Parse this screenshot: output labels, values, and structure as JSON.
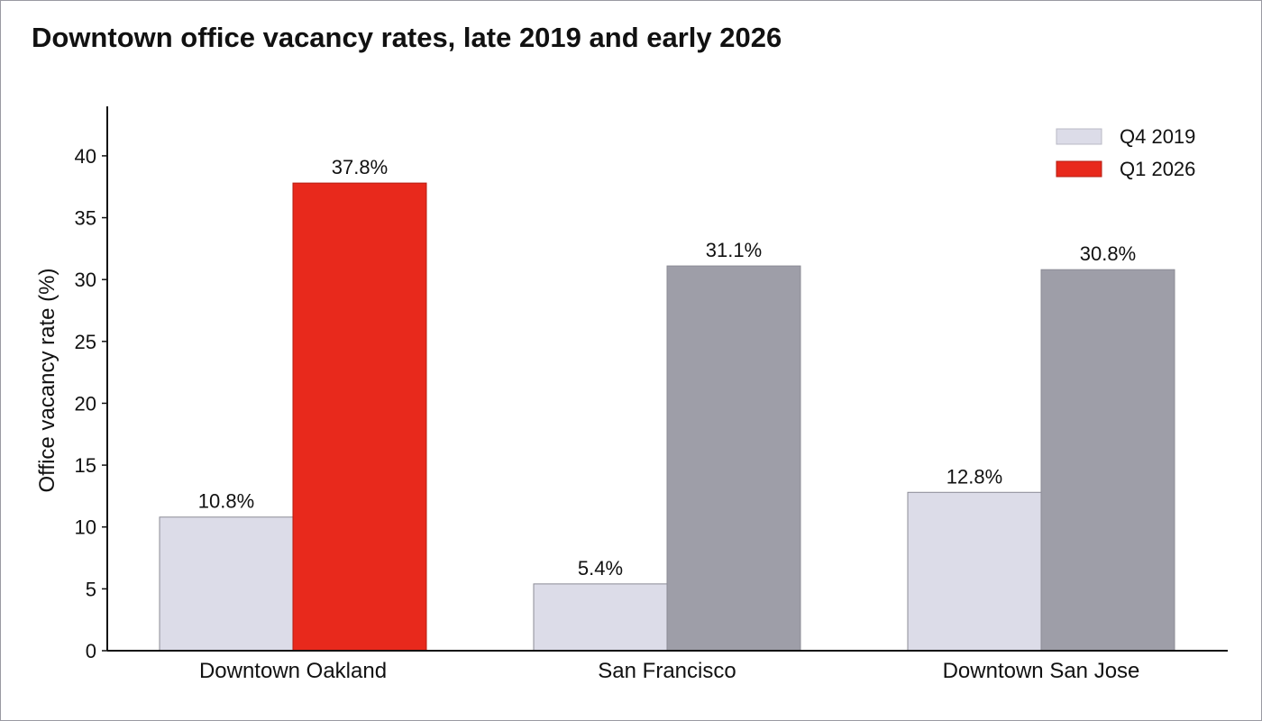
{
  "chart_data": {
    "type": "bar",
    "title": "Downtown office vacancy rates, late 2019 and early 2026",
    "xlabel": "",
    "ylabel": "Office vacancy rate (%)",
    "ylim": [
      0,
      44
    ],
    "yticks": [
      0,
      5,
      10,
      15,
      20,
      25,
      30,
      35,
      40
    ],
    "categories": [
      "Downtown Oakland",
      "San Francisco",
      "Downtown San Jose"
    ],
    "series": [
      {
        "name": "Q4 2019",
        "values": [
          10.8,
          5.4,
          12.8
        ],
        "labels": [
          "10.8%",
          "5.4%",
          "12.8%"
        ],
        "color": "#dcdce8"
      },
      {
        "name": "Q1 2026",
        "values": [
          37.8,
          31.1,
          30.8
        ],
        "labels": [
          "37.8%",
          "31.1%",
          "30.8%"
        ],
        "color": "#9e9ea8",
        "highlight_color": "#e8291c",
        "highlight_category": "Downtown Oakland"
      }
    ],
    "legend": {
      "position": "top-right",
      "entries": [
        {
          "label": "Q4 2019",
          "color": "#dcdce8"
        },
        {
          "label": "Q1 2026",
          "color": "#e8291c"
        }
      ]
    },
    "grid": false
  }
}
